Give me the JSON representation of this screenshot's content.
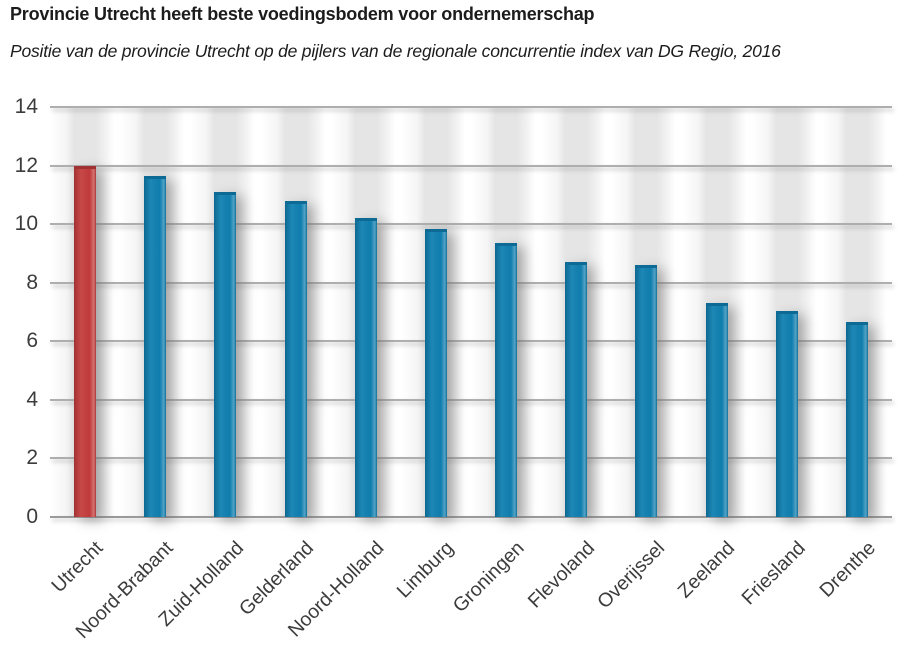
{
  "header": {
    "title": "Provincie Utrecht heeft beste voedingsbodem voor ondernemerschap",
    "subtitle": "Positie van de provincie Utrecht op de pijlers van de regionale concurrentie index van DG Regio, 2016"
  },
  "chart_data": {
    "type": "bar",
    "title": "Provincie Utrecht heeft beste voedingsbodem voor ondernemerschap",
    "subtitle": "Positie van de provincie Utrecht op de pijlers van de regionale concurrentie index van DG Regio, 2016",
    "categories": [
      "Utrecht",
      "Noord-Brabant",
      "Zuid-Holland",
      "Gelderland",
      "Noord-Holland",
      "Limburg",
      "Groningen",
      "Flevoland",
      "Overijssel",
      "Zeeland",
      "Friesland",
      "Drenthe"
    ],
    "values": [
      12.0,
      11.65,
      11.1,
      10.8,
      10.2,
      9.85,
      9.35,
      8.7,
      8.6,
      7.3,
      7.05,
      6.65
    ],
    "highlight_category": "Utrecht",
    "xlabel": "",
    "ylabel": "",
    "ylim": [
      0,
      14
    ],
    "yticks": [
      0,
      2,
      4,
      6,
      8,
      10,
      12,
      14
    ],
    "grid": true,
    "legend": false,
    "x_label_rotation_deg": -45,
    "colors": {
      "highlight_bar": "#c43c3c",
      "highlight_cap": "#a03132",
      "default_bar": "#0f7fb0",
      "default_cap": "#0c6a94",
      "gridline": "#aeaeae",
      "axis_line": "#9a9a9a",
      "tick_label": "#3c3c3c",
      "title_text": "#1c1c1c"
    }
  }
}
